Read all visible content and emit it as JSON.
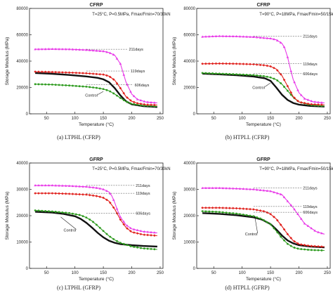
{
  "figure": {
    "series_colors": {
      "Control": "#111111",
      "606days": "#2e9b1f",
      "119days": "#e0201c",
      "211days": "#e83ae8"
    }
  },
  "chart_data": [
    {
      "type": "line",
      "title": "CFRP",
      "condition": "T=25°C, P=0.5MPa, Fmax/Fmin=70/30kN",
      "caption": "(a) LTPHL (CFRP)",
      "xlabel": "Temperature (°C)",
      "ylabel": "Storage Modulus (MPa)",
      "xlim": [
        20,
        255
      ],
      "ylim": [
        0,
        80000
      ],
      "xticks": [
        "50",
        "100",
        "150",
        "200",
        "250"
      ],
      "yticks": [
        "0",
        "20000",
        "40000",
        "60000",
        "80000"
      ],
      "series": [
        {
          "name": "Control",
          "x": [
            30,
            60,
            90,
            120,
            140,
            150,
            160,
            170,
            180,
            190,
            200,
            220,
            245
          ],
          "values": [
            31000,
            30400,
            29500,
            28400,
            27300,
            26200,
            24000,
            19500,
            14000,
            9500,
            7200,
            5800,
            5200
          ]
        },
        {
          "name": "606days",
          "x": [
            30,
            60,
            90,
            120,
            140,
            150,
            160,
            170,
            180,
            190,
            200,
            220,
            245
          ],
          "values": [
            22500,
            22200,
            21500,
            20600,
            19600,
            18800,
            17500,
            15000,
            12000,
            9300,
            7600,
            6300,
            5600
          ]
        },
        {
          "name": "119days",
          "x": [
            30,
            60,
            90,
            120,
            150,
            160,
            170,
            180,
            190,
            200,
            210,
            225,
            245
          ],
          "values": [
            32000,
            31700,
            31300,
            30800,
            29800,
            28600,
            25500,
            19500,
            13000,
            9500,
            8000,
            7000,
            6600
          ]
        },
        {
          "name": "211days",
          "x": [
            30,
            60,
            90,
            120,
            150,
            160,
            170,
            180,
            185,
            190,
            200,
            210,
            225,
            245
          ],
          "values": [
            49000,
            49200,
            49000,
            48500,
            47500,
            46500,
            44500,
            38000,
            31000,
            24000,
            15000,
            11000,
            9000,
            8300
          ]
        }
      ],
      "annotations": [
        "211days",
        "119days",
        "606days",
        "Control"
      ]
    },
    {
      "type": "line",
      "title": "CFRP",
      "condition": "T=90°C, P=18MPa, Fmax/Fmin=50/15kN",
      "caption": "(b) HTPLL (CFRP)",
      "xlabel": "Temperature (°C)",
      "ylabel": "Storage Modulus (MPa)",
      "xlim": [
        20,
        255
      ],
      "ylim": [
        0,
        80000
      ],
      "xticks": [
        "50",
        "100",
        "150",
        "200",
        "250"
      ],
      "yticks": [
        "0",
        "20000",
        "40000",
        "60000",
        "80000"
      ],
      "series": [
        {
          "name": "Control",
          "x": [
            30,
            60,
            90,
            120,
            140,
            150,
            160,
            170,
            180,
            190,
            200,
            220,
            245
          ],
          "values": [
            30500,
            30000,
            29300,
            28300,
            27000,
            25000,
            20000,
            14500,
            10500,
            8200,
            7000,
            6000,
            5500
          ]
        },
        {
          "name": "606days",
          "x": [
            30,
            60,
            90,
            120,
            140,
            150,
            160,
            170,
            180,
            190,
            200,
            220,
            245
          ],
          "values": [
            31000,
            30500,
            30000,
            29400,
            28500,
            27600,
            26000,
            22500,
            17500,
            12500,
            9000,
            6700,
            5800
          ]
        },
        {
          "name": "119days",
          "x": [
            30,
            60,
            90,
            120,
            140,
            150,
            160,
            170,
            180,
            190,
            200,
            220,
            245
          ],
          "values": [
            38000,
            38200,
            38000,
            37600,
            36800,
            36000,
            34000,
            29000,
            21000,
            13000,
            9000,
            7300,
            6800
          ]
        },
        {
          "name": "211days",
          "x": [
            30,
            60,
            90,
            120,
            150,
            160,
            170,
            175,
            180,
            185,
            190,
            200,
            210,
            225,
            245
          ],
          "values": [
            58500,
            59000,
            58800,
            58300,
            57200,
            56200,
            53500,
            50000,
            43000,
            34000,
            26000,
            16000,
            11500,
            9200,
            8300
          ]
        }
      ],
      "annotations": [
        "211days",
        "119days",
        "606days",
        "Control"
      ]
    },
    {
      "type": "line",
      "title": "GFRP",
      "condition": "T=25°C, P=0.5MPa, Fmax/Fmin=70/30kN",
      "caption": "(c) LTPHL (GFRP)",
      "xlabel": "Temperature (°C)",
      "ylabel": "Storage Modulus (MPa)",
      "xlim": [
        20,
        255
      ],
      "ylim": [
        0,
        40000
      ],
      "xticks": [
        "50",
        "100",
        "150",
        "200",
        "250"
      ],
      "yticks": [
        "0",
        "10000",
        "20000",
        "30000",
        "40000"
      ],
      "series": [
        {
          "name": "Control",
          "x": [
            30,
            60,
            80,
            100,
            110,
            120,
            130,
            140,
            150,
            160,
            170,
            180,
            200,
            220,
            245
          ],
          "values": [
            21500,
            21200,
            20700,
            19800,
            18800,
            17300,
            15500,
            13500,
            11800,
            10500,
            9700,
            9200,
            8800,
            8500,
            8300
          ]
        },
        {
          "name": "606days",
          "x": [
            30,
            60,
            90,
            110,
            120,
            130,
            140,
            150,
            160,
            170,
            180,
            200,
            220,
            245
          ],
          "values": [
            22000,
            21600,
            21000,
            20200,
            19300,
            18000,
            16200,
            14200,
            12300,
            10800,
            9700,
            8300,
            7600,
            7200
          ]
        },
        {
          "name": "119days",
          "x": [
            30,
            60,
            90,
            120,
            140,
            150,
            160,
            170,
            180,
            190,
            200,
            220,
            245
          ],
          "values": [
            28500,
            28500,
            28300,
            28000,
            27400,
            26800,
            25500,
            22500,
            18500,
            15500,
            13800,
            12800,
            12400
          ]
        },
        {
          "name": "211days",
          "x": [
            30,
            60,
            90,
            120,
            140,
            150,
            160,
            165,
            170,
            175,
            180,
            190,
            200,
            220,
            245
          ],
          "values": [
            31500,
            31500,
            31300,
            31000,
            30500,
            30000,
            29000,
            27500,
            25000,
            22000,
            19500,
            16500,
            15000,
            14000,
            13500
          ]
        }
      ],
      "annotations": [
        "211days",
        "119days",
        "606days",
        "Control"
      ]
    },
    {
      "type": "line",
      "title": "GFRP",
      "condition": "T=90°C, P=18MPa, Fmax/Fmin=50/15kN",
      "caption": "(d) HTPLL (GFRP)",
      "xlabel": "Temperature (°C)",
      "ylabel": "Storage Modulus (MPa)",
      "xlim": [
        20,
        255
      ],
      "ylim": [
        0,
        40000
      ],
      "xticks": [
        "50",
        "100",
        "150",
        "200",
        "250"
      ],
      "yticks": [
        "0",
        "10000",
        "20000",
        "30000",
        "40000"
      ],
      "series": [
        {
          "name": "Control",
          "x": [
            30,
            60,
            90,
            120,
            135,
            150,
            160,
            170,
            180,
            190,
            200,
            220,
            245
          ],
          "values": [
            21000,
            20700,
            20200,
            19400,
            18500,
            16800,
            14800,
            12500,
            10600,
            9500,
            8800,
            8300,
            8000
          ]
        },
        {
          "name": "606days",
          "x": [
            30,
            60,
            90,
            120,
            135,
            150,
            160,
            170,
            180,
            190,
            200,
            220,
            245
          ],
          "values": [
            21700,
            21400,
            20800,
            19800,
            18700,
            16700,
            14200,
            11500,
            9300,
            8000,
            7400,
            7000,
            6800
          ]
        },
        {
          "name": "119days",
          "x": [
            30,
            60,
            90,
            120,
            140,
            150,
            160,
            170,
            180,
            190,
            200,
            220,
            245
          ],
          "values": [
            23000,
            23000,
            22800,
            22400,
            21600,
            20600,
            18800,
            16000,
            13000,
            10500,
            9200,
            8500,
            8200
          ]
        },
        {
          "name": "211days",
          "x": [
            30,
            60,
            90,
            120,
            150,
            170,
            190,
            210,
            230,
            245
          ],
          "values": [
            30500,
            30500,
            30300,
            30000,
            29300,
            28000,
            23000,
            17000,
            14000,
            13000
          ]
        }
      ],
      "annotations": [
        "211days",
        "119days",
        "606days",
        "Control"
      ]
    }
  ]
}
